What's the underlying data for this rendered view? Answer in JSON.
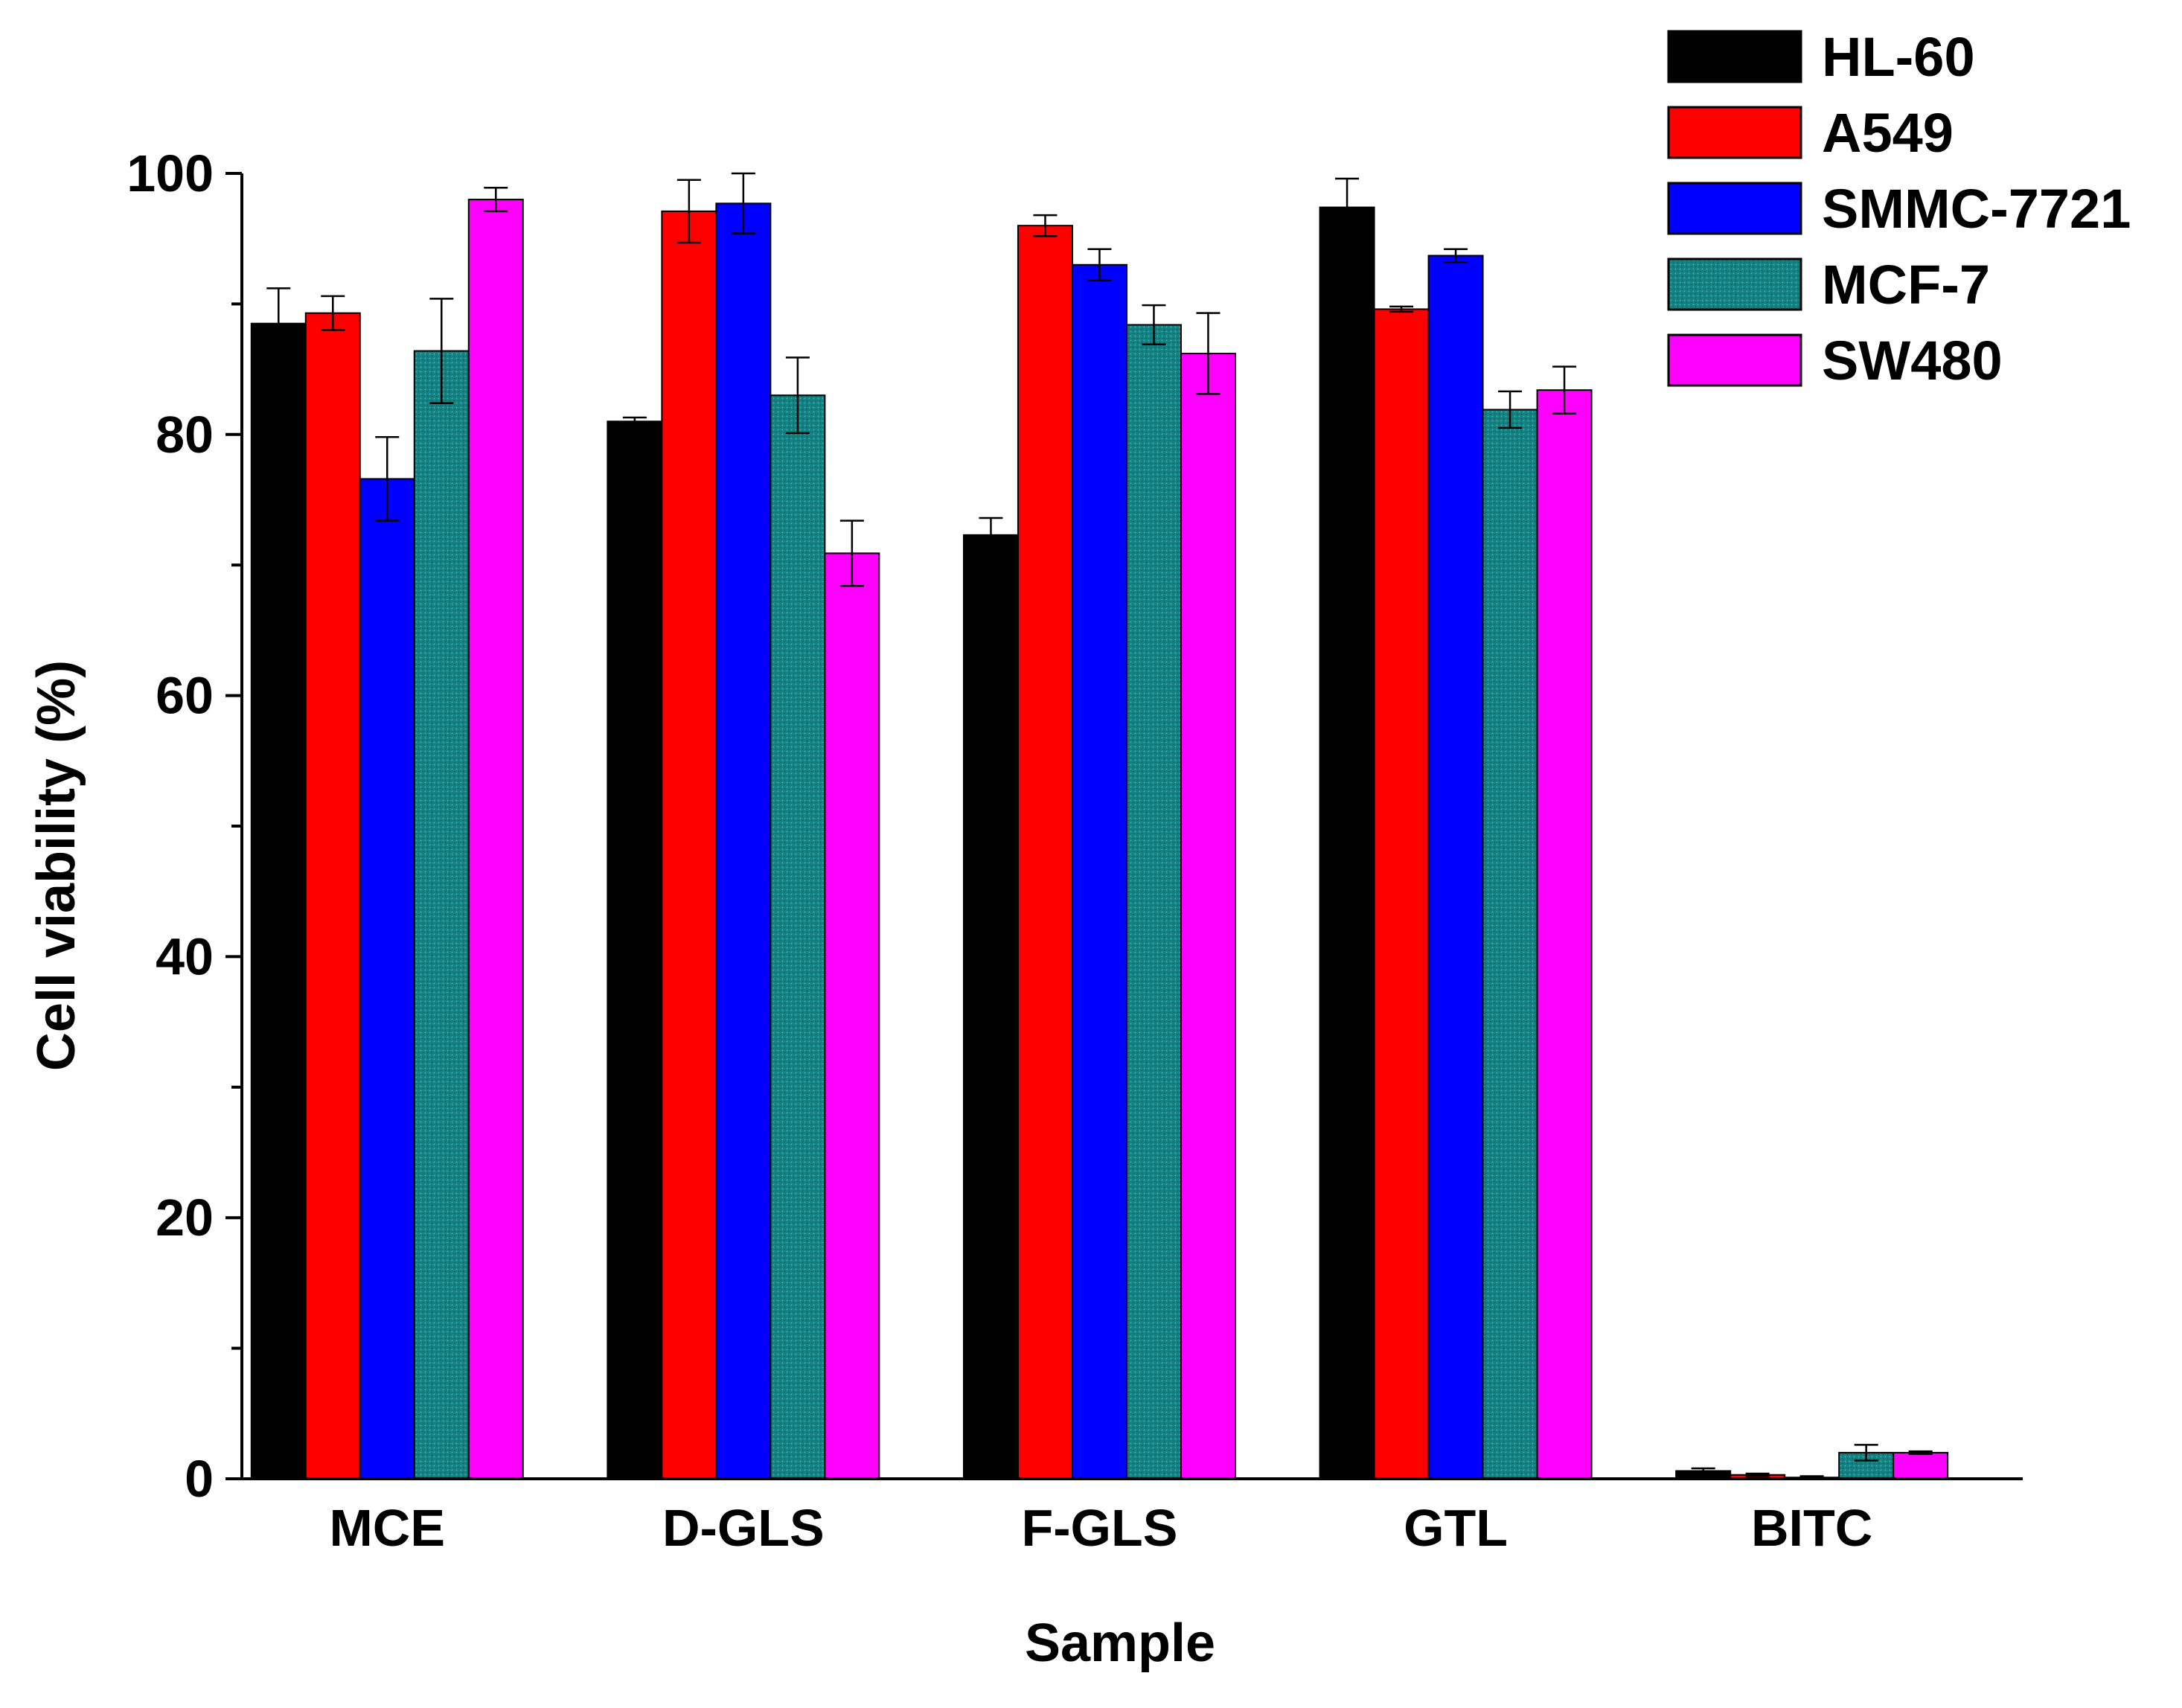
{
  "chart_data": {
    "type": "bar",
    "title": "",
    "xlabel": "Sample",
    "ylabel": "Cell viability (%)",
    "ylim": [
      0,
      100
    ],
    "yticks": [
      "0",
      "20",
      "40",
      "60",
      "80",
      "100"
    ],
    "categories": [
      "MCE",
      "D-GLS",
      "F-GLS",
      "GTL",
      "BITC"
    ],
    "legend_position": "top-right",
    "series": [
      {
        "name": "HL-60",
        "color": "#000000",
        "values": [
          88.5,
          81.0,
          72.3,
          97.4,
          0.6
        ],
        "errors": [
          2.7,
          0.3,
          1.3,
          2.2,
          0.2
        ]
      },
      {
        "name": "A549",
        "color": "#ff0000",
        "values": [
          89.3,
          97.1,
          96.0,
          89.6,
          0.3
        ],
        "errors": [
          1.3,
          2.4,
          0.8,
          0.2,
          0.1
        ]
      },
      {
        "name": "SMMC-7721",
        "color": "#0000ff",
        "values": [
          76.6,
          97.7,
          93.0,
          93.7,
          0.1
        ],
        "errors": [
          3.2,
          2.3,
          1.2,
          0.5,
          0.1
        ]
      },
      {
        "name": "MCF-7",
        "color": "#128080",
        "values": [
          86.4,
          83.0,
          88.4,
          81.9,
          2.0
        ],
        "errors": [
          4.0,
          2.9,
          1.5,
          1.4,
          0.6
        ]
      },
      {
        "name": "SW480",
        "color": "#ff00ff",
        "values": [
          98.0,
          70.9,
          86.2,
          83.4,
          2.0
        ],
        "errors": [
          0.9,
          2.5,
          3.1,
          1.8,
          0.1
        ]
      }
    ]
  }
}
